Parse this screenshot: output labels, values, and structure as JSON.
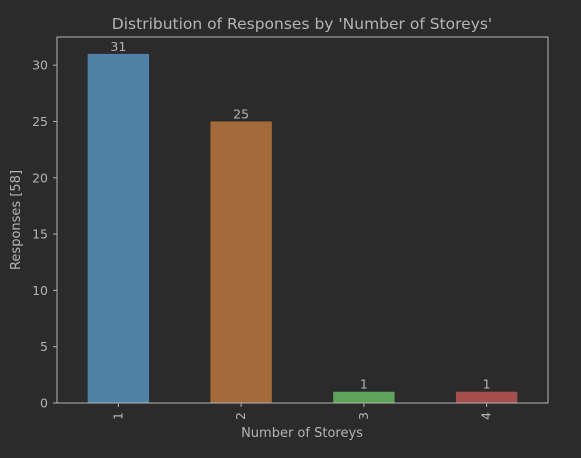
{
  "chart_data": {
    "type": "bar",
    "title": "Distribution of Responses by 'Number of Storeys'",
    "xlabel": "Number of Storeys",
    "ylabel": "Responses [58]",
    "categories": [
      "1",
      "2",
      "3",
      "4"
    ],
    "values": [
      31,
      25,
      1,
      1
    ],
    "data_labels": [
      "31",
      "25",
      "1",
      "1"
    ],
    "ylim": [
      0,
      32.5
    ],
    "yticks": [
      0,
      5,
      10,
      15,
      20,
      25,
      30
    ],
    "grid": false,
    "legend": "none",
    "colors": [
      "#5082a8",
      "#a56a3a",
      "#5fa35a",
      "#a44e4d"
    ],
    "background": "#2b2b2b",
    "text_color": "#b4b4b4",
    "axis_color": "#b4b4b4"
  }
}
